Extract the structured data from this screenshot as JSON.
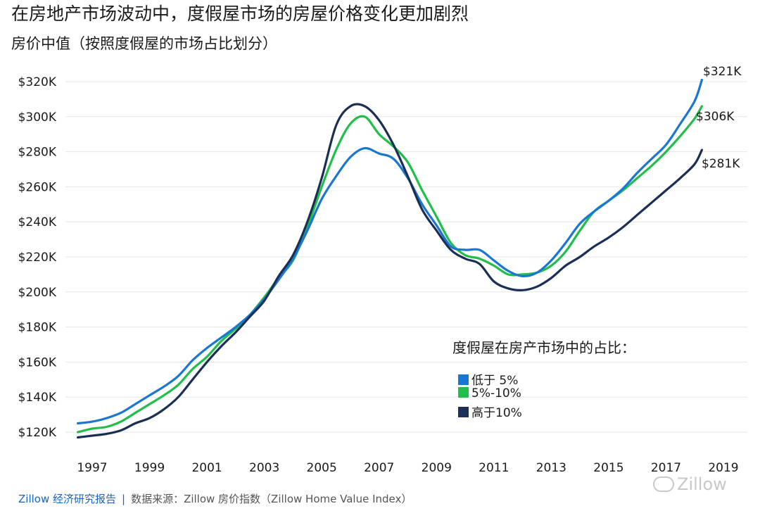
{
  "header": {
    "title": "在房地产市场波动中，度假屋市场的房屋价格变化更加剧烈",
    "subtitle": "房价中值（按照度假屋的市场占比划分）"
  },
  "legend": {
    "title": "度假屋在房产市场中的占比："
  },
  "footer": {
    "brand": "Zillow 经济研究报告",
    "separator": "|",
    "source": "数据来源：Zillow 房价指数（Zillow Home Value Index）"
  },
  "watermark": {
    "text": "Zillow"
  },
  "chart_data": {
    "type": "line",
    "title": "在房地产市场波动中，度假屋市场的房屋价格变化更加剧烈",
    "subtitle": "房价中值（按照度假屋的市场占比划分）",
    "xlabel": "",
    "ylabel": "",
    "xlim": [
      1996.3,
      2019.0
    ],
    "ylim": [
      115,
      325
    ],
    "x_ticks": [
      1997,
      1999,
      2001,
      2003,
      2005,
      2007,
      2009,
      2011,
      2013,
      2015,
      2017,
      2019
    ],
    "x_tick_labels": [
      "1997",
      "1999",
      "2001",
      "2003",
      "2005",
      "2007",
      "2009",
      "2011",
      "2013",
      "2015",
      "2017",
      "2019"
    ],
    "y_ticks": [
      120,
      140,
      160,
      180,
      200,
      220,
      240,
      260,
      280,
      300,
      320
    ],
    "y_tick_labels": [
      "$120K",
      "$140K",
      "$160K",
      "$180K",
      "$200K",
      "$220K",
      "$240K",
      "$260K",
      "$280K",
      "$300K",
      "$320K"
    ],
    "grid": "horizontal",
    "legend_placement": "bottom-right",
    "series": [
      {
        "name": "低于 5%",
        "color": "#1976d2",
        "end_label": "$321K",
        "x": [
          1996.5,
          1997.0,
          1997.5,
          1998.0,
          1998.5,
          1999.0,
          1999.5,
          2000.0,
          2000.5,
          2001.0,
          2001.5,
          2002.0,
          2002.5,
          2003.0,
          2003.5,
          2004.0,
          2004.5,
          2005.0,
          2005.5,
          2006.0,
          2006.5,
          2007.0,
          2007.5,
          2008.0,
          2008.5,
          2009.0,
          2009.5,
          2010.0,
          2010.5,
          2011.0,
          2011.5,
          2012.0,
          2012.5,
          2013.0,
          2013.5,
          2014.0,
          2014.5,
          2015.0,
          2015.5,
          2016.0,
          2016.5,
          2017.0,
          2017.5,
          2018.0,
          2018.25
        ],
        "y": [
          125,
          126,
          128,
          131,
          136,
          141,
          146,
          152,
          161,
          168,
          174,
          180,
          187,
          196,
          207,
          219,
          235,
          253,
          266,
          277,
          282,
          279,
          276,
          265,
          250,
          238,
          226,
          224,
          224,
          218,
          212,
          209,
          211,
          218,
          228,
          239,
          246,
          252,
          259,
          268,
          276,
          284,
          296,
          309,
          321
        ]
      },
      {
        "name": "5%-10%",
        "color": "#1fbf4a",
        "end_label": "$306K",
        "x": [
          1996.5,
          1997.0,
          1997.5,
          1998.0,
          1998.5,
          1999.0,
          1999.5,
          2000.0,
          2000.5,
          2001.0,
          2001.5,
          2002.0,
          2002.5,
          2003.0,
          2003.5,
          2004.0,
          2004.5,
          2005.0,
          2005.5,
          2006.0,
          2006.5,
          2007.0,
          2007.5,
          2008.0,
          2008.5,
          2009.0,
          2009.5,
          2010.0,
          2010.5,
          2011.0,
          2011.5,
          2012.0,
          2012.5,
          2013.0,
          2013.5,
          2014.0,
          2014.5,
          2015.0,
          2015.5,
          2016.0,
          2016.5,
          2017.0,
          2017.5,
          2018.0,
          2018.25
        ],
        "y": [
          120,
          122,
          123,
          126,
          131,
          136,
          141,
          147,
          156,
          163,
          172,
          179,
          187,
          197,
          208,
          218,
          237,
          260,
          281,
          296,
          300,
          290,
          283,
          274,
          258,
          243,
          228,
          221,
          219,
          215,
          210,
          210,
          211,
          215,
          223,
          235,
          246,
          252,
          258,
          265,
          272,
          280,
          289,
          299,
          306
        ]
      },
      {
        "name": "高于10%",
        "color": "#1b2f55",
        "end_label": "$281K",
        "x": [
          1996.5,
          1997.0,
          1997.5,
          1998.0,
          1998.5,
          1999.0,
          1999.5,
          2000.0,
          2000.5,
          2001.0,
          2001.5,
          2002.0,
          2002.5,
          2003.0,
          2003.5,
          2004.0,
          2004.5,
          2005.0,
          2005.5,
          2006.0,
          2006.5,
          2007.0,
          2007.5,
          2008.0,
          2008.5,
          2009.0,
          2009.5,
          2010.0,
          2010.5,
          2011.0,
          2011.5,
          2012.0,
          2012.5,
          2013.0,
          2013.5,
          2014.0,
          2014.5,
          2015.0,
          2015.5,
          2016.0,
          2016.5,
          2017.0,
          2017.5,
          2018.0,
          2018.25
        ],
        "y": [
          117,
          118,
          119,
          121,
          125,
          128,
          133,
          140,
          150,
          160,
          169,
          177,
          186,
          195,
          209,
          221,
          240,
          265,
          295,
          306,
          306,
          298,
          284,
          266,
          247,
          235,
          224,
          219,
          216,
          206,
          202,
          201,
          203,
          208,
          215,
          220,
          226,
          231,
          237,
          244,
          251,
          258,
          265,
          273,
          281
        ]
      }
    ]
  }
}
